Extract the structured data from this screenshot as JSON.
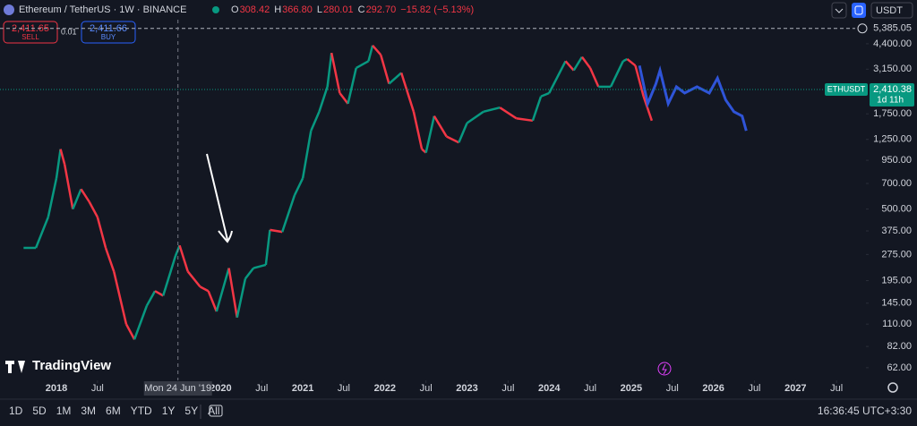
{
  "header": {
    "symbol": "Ethereum / TetherUS · 1W · BINANCE",
    "ohlc": [
      {
        "k": "O",
        "v": "308.42"
      },
      {
        "k": "H",
        "v": "366.80"
      },
      {
        "k": "L",
        "v": "280.01"
      },
      {
        "k": "C",
        "v": "292.70"
      }
    ],
    "change": "−15.82 (−5.13%)",
    "currency": "USDT"
  },
  "trade": {
    "sell_price": "2,411.65",
    "sell": "SELL",
    "spread": "0.01",
    "buy_price": "2,411.66",
    "buy": "BUY"
  },
  "logo": "TradingView",
  "toolbar": {
    "ranges": [
      "1D",
      "5D",
      "1M",
      "3M",
      "6M",
      "YTD",
      "1Y",
      "5Y",
      "All"
    ],
    "clock": "16:36:45 UTC+3:30"
  },
  "chart_data": {
    "type": "line",
    "log_scale": true,
    "xlim": [
      2017.313,
      2027.836
    ],
    "ylim": [
      52.5,
      6040
    ],
    "xticks": [
      {
        "value": 2018,
        "label": "2018"
      },
      {
        "value": 2018.5,
        "label": "Jul"
      },
      {
        "value": 2020,
        "label": "2020"
      },
      {
        "value": 2020.5,
        "label": "Jul"
      },
      {
        "value": 2021,
        "label": "2021"
      },
      {
        "value": 2021.5,
        "label": "Jul"
      },
      {
        "value": 2022,
        "label": "2022"
      },
      {
        "value": 2022.5,
        "label": "Jul"
      },
      {
        "value": 2023,
        "label": "2023"
      },
      {
        "value": 2023.5,
        "label": "Jul"
      },
      {
        "value": 2024,
        "label": "2024"
      },
      {
        "value": 2024.5,
        "label": "Jul"
      },
      {
        "value": 2025,
        "label": "2025"
      },
      {
        "value": 2025.5,
        "label": "Jul"
      },
      {
        "value": 2026,
        "label": "2026"
      },
      {
        "value": 2026.5,
        "label": "Jul"
      },
      {
        "value": 2027,
        "label": "2027"
      },
      {
        "value": 2027.5,
        "label": "Jul"
      }
    ],
    "yticks": [
      {
        "value": 4400,
        "label": "4,400.00"
      },
      {
        "value": 3150,
        "label": "3,150.00"
      },
      {
        "value": 1750,
        "label": "1,750.00"
      },
      {
        "value": 1250,
        "label": "1,250.00"
      },
      {
        "value": 950,
        "label": "950.00"
      },
      {
        "value": 700,
        "label": "700.00"
      },
      {
        "value": 500,
        "label": "500.00"
      },
      {
        "value": 375,
        "label": "375.00"
      },
      {
        "value": 275,
        "label": "275.00"
      },
      {
        "value": 195,
        "label": "195.00"
      },
      {
        "value": 145,
        "label": "145.00"
      },
      {
        "value": 110,
        "label": "110.00"
      },
      {
        "value": 82,
        "label": "82.00"
      },
      {
        "value": 62,
        "label": "62.00"
      }
    ],
    "series": [
      {
        "color_up": "#089981",
        "color_down": "#f23645",
        "x": [
          2017.6,
          2017.75,
          2017.9,
          2018.0,
          2018.05,
          2018.1,
          2018.2,
          2018.3,
          2018.4,
          2018.5,
          2018.6,
          2018.7,
          2018.85,
          2018.95,
          2019.1,
          2019.2,
          2019.3,
          2019.45,
          2019.5,
          2019.6,
          2019.75,
          2019.85,
          2019.95,
          2020.1,
          2020.2,
          2020.3,
          2020.4,
          2020.55,
          2020.6,
          2020.75,
          2020.9,
          2021.0,
          2021.1,
          2021.2,
          2021.3,
          2021.35,
          2021.45,
          2021.55,
          2021.65,
          2021.8,
          2021.85,
          2021.95,
          2022.05,
          2022.2,
          2022.35,
          2022.45,
          2022.5,
          2022.6,
          2022.75,
          2022.9,
          2023.0,
          2023.2,
          2023.4,
          2023.6,
          2023.8,
          2023.9,
          2024.0,
          2024.2,
          2024.3,
          2024.4,
          2024.5,
          2024.6,
          2024.75,
          2024.9,
          2024.95,
          2025.05,
          2025.15,
          2025.25
        ],
        "values": [
          300,
          300,
          450,
          750,
          1100,
          900,
          500,
          650,
          550,
          450,
          300,
          220,
          110,
          90,
          140,
          170,
          160,
          270,
          310,
          220,
          180,
          170,
          130,
          230,
          120,
          200,
          230,
          240,
          380,
          370,
          600,
          750,
          1400,
          1800,
          2500,
          3900,
          2300,
          2000,
          3200,
          3500,
          4300,
          3800,
          2600,
          3000,
          1800,
          1100,
          1050,
          1700,
          1300,
          1200,
          1550,
          1800,
          1900,
          1650,
          1600,
          2200,
          2300,
          3500,
          3100,
          3700,
          3200,
          2500,
          2500,
          3500,
          3600,
          3300,
          2200,
          1600
        ]
      },
      {
        "color": "#2f54d8",
        "x": [
          2025.1,
          2025.2,
          2025.3,
          2025.35,
          2025.45,
          2025.55,
          2025.65,
          2025.8,
          2025.95,
          2026.05,
          2026.15,
          2026.25,
          2026.35,
          2026.4
        ],
        "values": [
          3300,
          2000,
          2600,
          3100,
          2000,
          2500,
          2300,
          2500,
          2300,
          2800,
          2100,
          1800,
          1700,
          1400
        ]
      }
    ],
    "last_price": {
      "value": 2410.38,
      "label": "2,410.38"
    },
    "symbol_tag": "ETHUSDT",
    "countdown": "1d 11h",
    "alert_line": {
      "value": 5385.05,
      "label": "5,385.05"
    },
    "crosshair": {
      "value": 2019.48,
      "label": "Mon 24 Jun '19"
    }
  }
}
